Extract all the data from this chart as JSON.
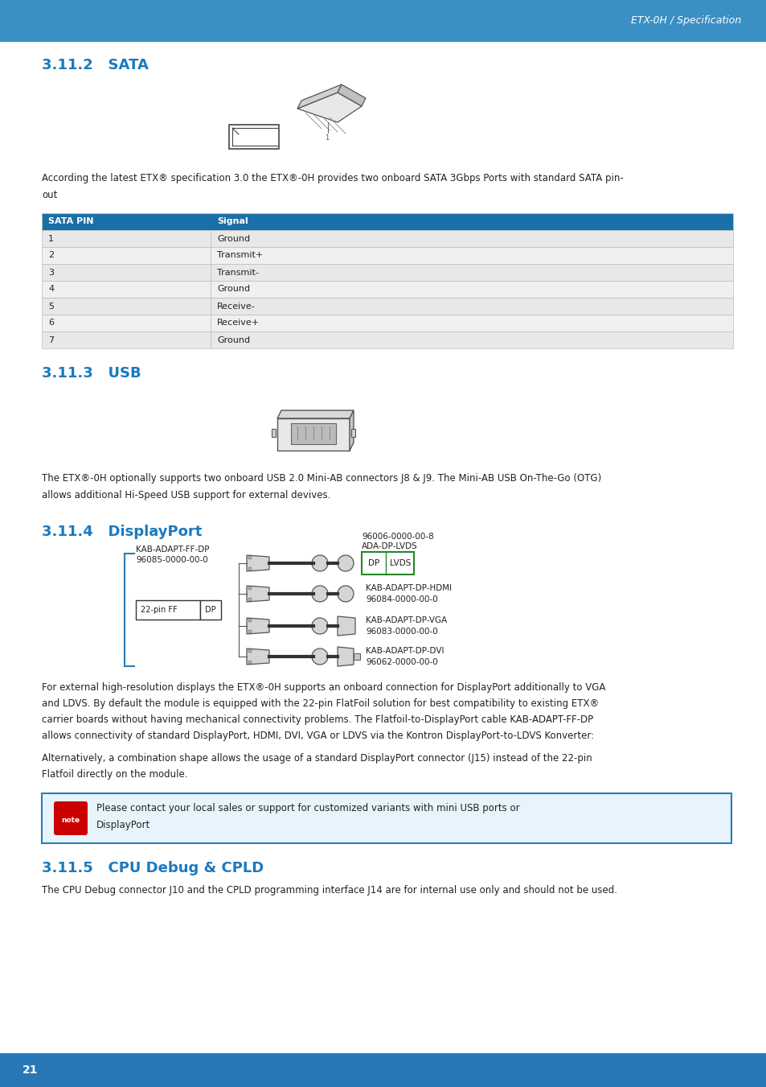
{
  "page_bg": "#ffffff",
  "header_bg_top": "#3a8fc5",
  "header_bg_bot": "#2070a8",
  "header_text": "ETX-0H / Specification",
  "header_text_color": "#ffffff",
  "footer_bg": "#2878b8",
  "footer_text": "21",
  "footer_text_color": "#ffffff",
  "section_color": "#1a7abf",
  "body_text_color": "#222222",
  "table_header_bg": "#1a6fa8",
  "table_header_text": "#ffffff",
  "table_row_alt1": "#e8e8e8",
  "table_row_alt2": "#f0f0f0",
  "table_border": "#bbbbbb",
  "note_bg": "#e8f4fb",
  "note_border": "#2a7db5",
  "green_box": "#228822",
  "blue_bracket": "#2a7db5",
  "sections": [
    {
      "title": "3.11.2   SATA"
    },
    {
      "title": "3.11.3   USB"
    },
    {
      "title": "3.11.4   DisplayPort"
    },
    {
      "title": "3.11.5   CPU Debug & CPLD"
    }
  ],
  "sata_body_text": "According the latest ETX® specification 3.0 the ETX®-0H provides two onboard SATA 3Gbps Ports with standard SATA pin-\nout",
  "sata_table_headers": [
    "SATA PIN",
    "Signal"
  ],
  "sata_table_rows": [
    [
      "1",
      "Ground"
    ],
    [
      "2",
      "Transmit+"
    ],
    [
      "3",
      "Transmit-"
    ],
    [
      "4",
      "Ground"
    ],
    [
      "5",
      "Receive-"
    ],
    [
      "6",
      "Receive+"
    ],
    [
      "7",
      "Ground"
    ]
  ],
  "usb_body_text": "The ETX®-0H optionally supports two onboard USB 2.0 Mini-AB connectors J8 & J9. The Mini-AB USB On-The-Go (OTG)\nallows additional Hi-Speed USB support for external devives.",
  "dp_body_text1": "For external high-resolution displays the ETX®-0H supports an onboard connection for DisplayPort additionally to VGA\nand LDVS. By default the module is equipped with the 22-pin FlatFoil solution for best compatibility to existing ETX®\ncarrier boards without having mechanical connectivity problems. The Flatfoil-to-DisplayPort cable KAB-ADAPT-FF-DP\nallows connectivity of standard DisplayPort, HDMI, DVI, VGA or LDVS via the Kontron DisplayPort-to-LDVS Konverter:",
  "dp_body_text2": "Alternatively, a combination shape allows the usage of a standard DisplayPort connector (J15) instead of the 22-pin\nFlatfoil directly on the module.",
  "note_text": "Please contact your local sales or support for customized variants with mini USB ports or\nDisplayPort",
  "cpu_body_text": "The CPU Debug connector J10 and the CPLD programming interface J14 are for internal use only and should not be used.",
  "dp_left_label1": "KAB-ADAPT-FF-DP",
  "dp_left_label2": "96085-0000-00-0",
  "dp_right_rows": [
    {
      "label1": "ADA-DP-LVDS",
      "label2": "96006-0000-00-8",
      "has_green_box": true
    },
    {
      "label1": "KAB-ADAPT-DP-HDMI",
      "label2": "96084-0000-00-0",
      "has_green_box": false
    },
    {
      "label1": "KAB-ADAPT-DP-VGA",
      "label2": "96083-0000-00-0",
      "has_green_box": false
    },
    {
      "label1": "KAB-ADAPT-DP-DVI",
      "label2": "96062-0000-00-0",
      "has_green_box": false
    }
  ]
}
